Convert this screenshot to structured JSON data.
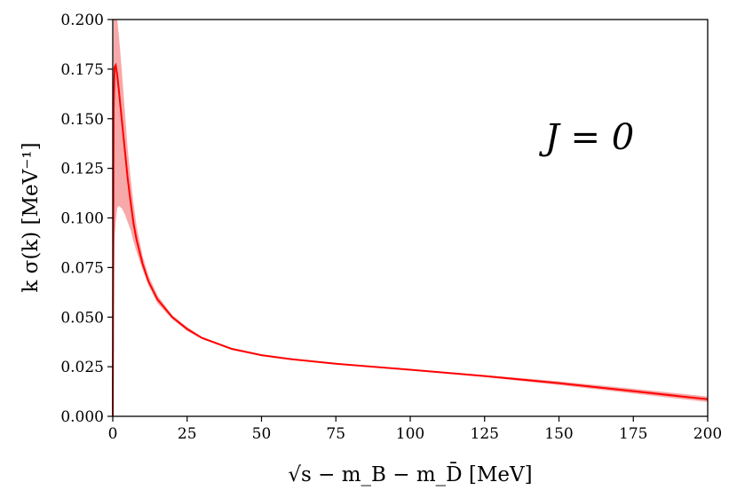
{
  "chart_data": {
    "type": "line",
    "xlabel": "√s − m_B − m_D̄ [MeV]",
    "ylabel": "k σ(k) [MeV⁻¹]",
    "annotation": "J = 0",
    "xlim": [
      0,
      200
    ],
    "ylim": [
      0,
      0.2
    ],
    "xticks": [
      "0",
      "25",
      "50",
      "75",
      "100",
      "125",
      "150",
      "175",
      "200"
    ],
    "yticks": [
      "0.000",
      "0.025",
      "0.050",
      "0.075",
      "0.100",
      "0.125",
      "0.150",
      "0.175",
      "0.200"
    ],
    "grid": false,
    "colors": {
      "line": "#ff0000",
      "band": "#f7a8a8"
    },
    "series": [
      {
        "x": [
          0.0,
          0.3,
          0.6,
          1.0,
          1.5,
          2.0,
          3.0,
          4.0,
          5.0,
          6.0,
          7.0,
          8.0,
          10.0,
          12.0,
          15.0,
          20.0,
          25.0,
          30.0,
          40.0,
          50.0,
          60.0,
          75.0,
          100.0,
          125.0,
          150.0,
          175.0,
          200.0
        ],
        "y": [
          0.0,
          0.155,
          0.176,
          0.177,
          0.172,
          0.165,
          0.15,
          0.135,
          0.12,
          0.108,
          0.097,
          0.089,
          0.077,
          0.068,
          0.059,
          0.05,
          0.044,
          0.0395,
          0.034,
          0.0308,
          0.0288,
          0.0265,
          0.0235,
          0.0203,
          0.0167,
          0.0127,
          0.0086
        ],
        "band_low": [
          0.0,
          0.05,
          0.09,
          0.098,
          0.105,
          0.106,
          0.105,
          0.102,
          0.098,
          0.094,
          0.088,
          0.083,
          0.074,
          0.066,
          0.057,
          0.049,
          0.043,
          0.039,
          0.0335,
          0.0304,
          0.0284,
          0.0262,
          0.0232,
          0.0198,
          0.0158,
          0.0115,
          0.0072
        ],
        "band_high": [
          0.0,
          0.2,
          0.2,
          0.2,
          0.2,
          0.193,
          0.175,
          0.155,
          0.135,
          0.12,
          0.107,
          0.096,
          0.081,
          0.071,
          0.061,
          0.051,
          0.045,
          0.04,
          0.0345,
          0.0312,
          0.0292,
          0.0268,
          0.0238,
          0.0208,
          0.0176,
          0.0139,
          0.01
        ]
      }
    ]
  }
}
